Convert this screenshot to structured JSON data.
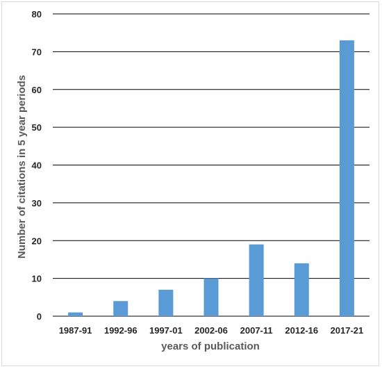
{
  "chart_data": {
    "type": "bar",
    "categories": [
      "1987-91",
      "1992-96",
      "1997-01",
      "2002-06",
      "2007-11",
      "2012-16",
      "2017-21"
    ],
    "values": [
      1,
      4,
      7,
      10,
      19,
      14,
      73
    ],
    "title": "",
    "xlabel": "years of publication",
    "ylabel": "Number of citations in 5 year periods",
    "ylim": [
      0,
      80
    ],
    "yticks": [
      0,
      10,
      20,
      30,
      40,
      50,
      60,
      70,
      80
    ],
    "grid": true,
    "bar_color": "#5b9bd5",
    "grid_color": "#000000"
  }
}
